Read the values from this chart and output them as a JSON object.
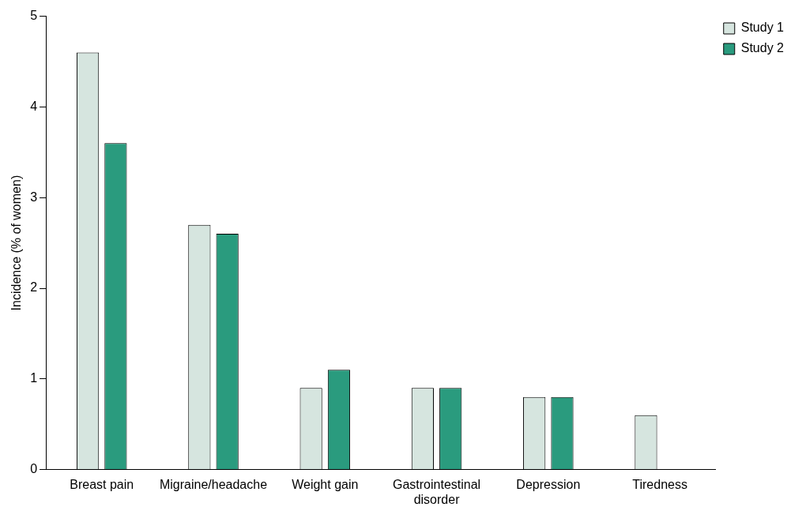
{
  "chart_data": {
    "type": "bar",
    "ylabel": "Incidence (% of women)",
    "categories": [
      "Breast pain",
      "Migraine/headache",
      "Weight gain",
      "Gastrointestinal disorder",
      "Depression",
      "Tiredness"
    ],
    "series": [
      {
        "name": "Study 1",
        "color": "#d6e5df",
        "values": [
          4.6,
          2.7,
          0.9,
          0.9,
          0.8,
          0.6
        ]
      },
      {
        "name": "Study 2",
        "color": "#2a9b7e",
        "values": [
          3.6,
          2.6,
          1.1,
          0.9,
          0.8,
          null
        ]
      }
    ],
    "ylim": [
      0,
      5
    ],
    "yticks": [
      0,
      1,
      2,
      3,
      4,
      5
    ],
    "grid": false,
    "legend": "top right"
  }
}
